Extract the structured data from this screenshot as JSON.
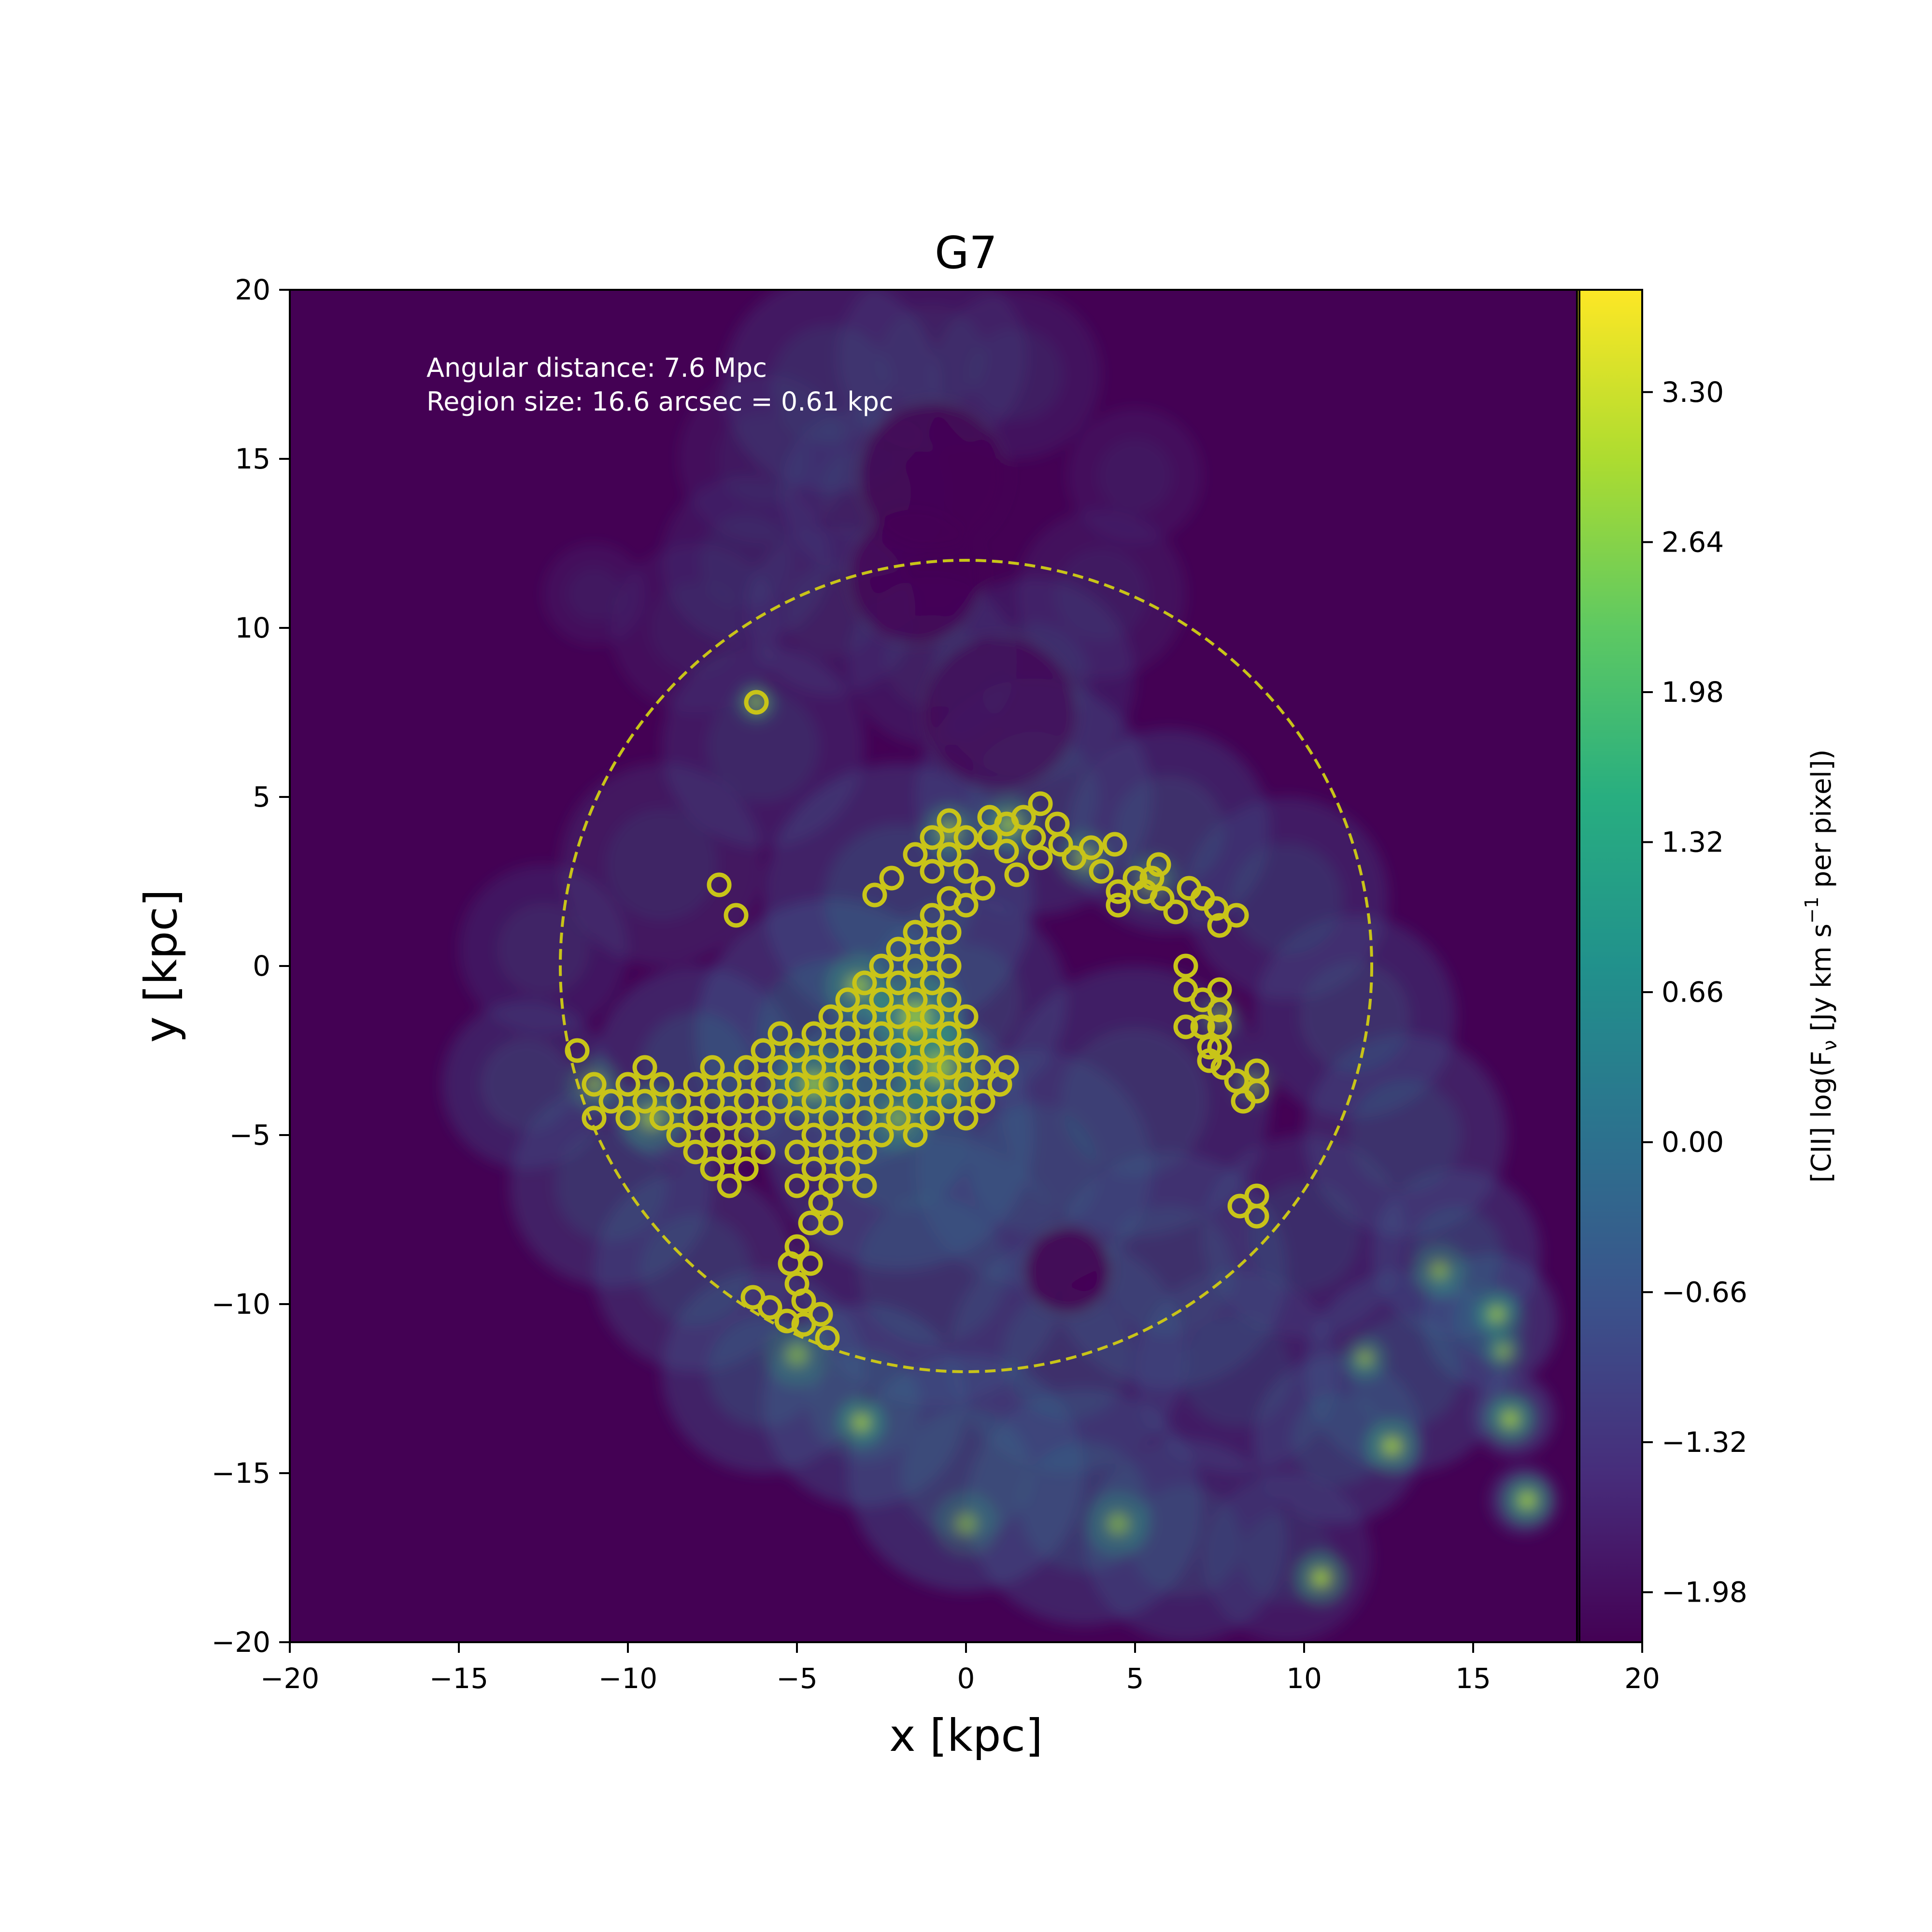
{
  "chart_data": {
    "type": "heatmap",
    "title": "G7",
    "xlabel": "x [kpc]",
    "ylabel": "y [kpc]",
    "xlim": [
      -20,
      20
    ],
    "ylim": [
      -20,
      20
    ],
    "xticks": [
      -20,
      -15,
      -10,
      -5,
      0,
      5,
      10,
      15,
      20
    ],
    "yticks": [
      -20,
      -15,
      -10,
      -5,
      0,
      5,
      10,
      15,
      20
    ],
    "xtick_labels": [
      "−20",
      "−15",
      "−10",
      "−5",
      "0",
      "5",
      "10",
      "15",
      "20"
    ],
    "ytick_labels": [
      "−20",
      "−15",
      "−10",
      "−5",
      "0",
      "5",
      "10",
      "15",
      "20"
    ],
    "annotations": [
      "Angular distance: 7.6 Mpc",
      "Region size: 16.6 arcsec = 0.61 kpc"
    ],
    "grid": false,
    "colormap": "viridis",
    "colorbar": {
      "label": "[CII] log(Fν [Jy km s⁻¹ per pixel])",
      "range": [
        -2.2,
        3.75
      ],
      "ticks": [
        -1.98,
        -1.32,
        -0.66,
        0.0,
        0.66,
        1.32,
        1.98,
        2.64,
        3.3
      ],
      "tick_labels": [
        "−1.98",
        "−1.32",
        "−0.66",
        "0.00",
        "0.66",
        "1.32",
        "1.98",
        "2.64",
        "3.30"
      ]
    },
    "dashed_circle": {
      "center": [
        0,
        0
      ],
      "radius": 12,
      "color": "#c8c418"
    },
    "regions": {
      "name": "",
      "radius": 0.3,
      "color": "#c8c418",
      "points": [
        [
          -6.2,
          7.8
        ],
        [
          -7.3,
          2.4
        ],
        [
          -6.8,
          1.5
        ],
        [
          -11.5,
          -2.5
        ],
        [
          -11.0,
          -3.5
        ],
        [
          -11.0,
          -4.5
        ],
        [
          -10.5,
          -4.0
        ],
        [
          -10.0,
          -3.5
        ],
        [
          -10.0,
          -4.5
        ],
        [
          -9.5,
          -4.0
        ],
        [
          -9.5,
          -3.0
        ],
        [
          -9.0,
          -3.5
        ],
        [
          -9.0,
          -4.5
        ],
        [
          -8.5,
          -4.0
        ],
        [
          -8.5,
          -5.0
        ],
        [
          -8.0,
          -3.5
        ],
        [
          -8.0,
          -4.5
        ],
        [
          -8.0,
          -5.5
        ],
        [
          -7.5,
          -3.0
        ],
        [
          -7.5,
          -4.0
        ],
        [
          -7.5,
          -5.0
        ],
        [
          -7.5,
          -6.0
        ],
        [
          -7.0,
          -3.5
        ],
        [
          -7.0,
          -4.5
        ],
        [
          -7.0,
          -5.5
        ],
        [
          -7.0,
          -6.5
        ],
        [
          -6.5,
          -3.0
        ],
        [
          -6.5,
          -4.0
        ],
        [
          -6.5,
          -5.0
        ],
        [
          -6.5,
          -6.0
        ],
        [
          -6.0,
          -2.5
        ],
        [
          -6.0,
          -3.5
        ],
        [
          -6.0,
          -4.5
        ],
        [
          -6.0,
          -5.5
        ],
        [
          -5.5,
          -2.0
        ],
        [
          -5.5,
          -3.0
        ],
        [
          -5.5,
          -4.0
        ],
        [
          -5.0,
          -2.5
        ],
        [
          -5.0,
          -3.5
        ],
        [
          -5.0,
          -4.5
        ],
        [
          -5.0,
          -5.5
        ],
        [
          -5.0,
          -6.5
        ],
        [
          -4.5,
          -2.0
        ],
        [
          -4.5,
          -3.0
        ],
        [
          -4.5,
          -4.0
        ],
        [
          -4.5,
          -5.0
        ],
        [
          -4.5,
          -6.0
        ],
        [
          -4.0,
          -1.5
        ],
        [
          -4.0,
          -2.5
        ],
        [
          -4.0,
          -3.5
        ],
        [
          -4.0,
          -4.5
        ],
        [
          -4.0,
          -5.5
        ],
        [
          -4.0,
          -6.5
        ],
        [
          -3.5,
          -1.0
        ],
        [
          -3.5,
          -2.0
        ],
        [
          -3.5,
          -3.0
        ],
        [
          -3.5,
          -4.0
        ],
        [
          -3.5,
          -5.0
        ],
        [
          -3.5,
          -6.0
        ],
        [
          -3.0,
          -0.5
        ],
        [
          -3.0,
          -1.5
        ],
        [
          -3.0,
          -2.5
        ],
        [
          -3.0,
          -3.5
        ],
        [
          -3.0,
          -4.5
        ],
        [
          -3.0,
          -5.5
        ],
        [
          -3.0,
          -6.5
        ],
        [
          -2.5,
          0.0
        ],
        [
          -2.5,
          -1.0
        ],
        [
          -2.5,
          -2.0
        ],
        [
          -2.5,
          -3.0
        ],
        [
          -2.5,
          -4.0
        ],
        [
          -2.5,
          -5.0
        ],
        [
          -2.0,
          0.5
        ],
        [
          -2.0,
          -0.5
        ],
        [
          -2.0,
          -1.5
        ],
        [
          -2.0,
          -2.5
        ],
        [
          -2.0,
          -3.5
        ],
        [
          -2.0,
          -4.5
        ],
        [
          -1.5,
          1.0
        ],
        [
          -1.5,
          0.0
        ],
        [
          -1.5,
          -1.0
        ],
        [
          -1.5,
          -2.0
        ],
        [
          -1.5,
          -3.0
        ],
        [
          -1.5,
          -4.0
        ],
        [
          -1.5,
          -5.0
        ],
        [
          -1.0,
          1.5
        ],
        [
          -1.0,
          0.5
        ],
        [
          -1.0,
          -0.5
        ],
        [
          -1.0,
          -1.5
        ],
        [
          -1.0,
          -2.5
        ],
        [
          -1.0,
          -3.5
        ],
        [
          -1.0,
          -4.5
        ],
        [
          -0.5,
          2.0
        ],
        [
          -0.5,
          1.0
        ],
        [
          -0.5,
          0.0
        ],
        [
          -0.5,
          -1.0
        ],
        [
          -0.5,
          -2.0
        ],
        [
          -0.5,
          -3.0
        ],
        [
          -0.5,
          -4.0
        ],
        [
          0.0,
          -1.5
        ],
        [
          0.0,
          -2.5
        ],
        [
          0.0,
          -3.5
        ],
        [
          0.0,
          -4.5
        ],
        [
          0.5,
          -3.0
        ],
        [
          0.5,
          -4.0
        ],
        [
          1.0,
          -3.5
        ],
        [
          1.2,
          -3.0
        ],
        [
          -2.7,
          2.1
        ],
        [
          -2.2,
          2.6
        ],
        [
          -1.5,
          3.3
        ],
        [
          -1.0,
          3.8
        ],
        [
          -1.0,
          2.8
        ],
        [
          -0.5,
          4.3
        ],
        [
          -0.5,
          3.3
        ],
        [
          0.0,
          3.8
        ],
        [
          0.0,
          2.8
        ],
        [
          0.0,
          1.8
        ],
        [
          0.5,
          2.3
        ],
        [
          0.7,
          4.4
        ],
        [
          0.7,
          3.8
        ],
        [
          1.2,
          4.2
        ],
        [
          1.2,
          3.4
        ],
        [
          1.5,
          2.7
        ],
        [
          1.7,
          4.4
        ],
        [
          2.0,
          3.8
        ],
        [
          2.2,
          4.8
        ],
        [
          2.2,
          3.2
        ],
        [
          2.7,
          4.2
        ],
        [
          2.8,
          3.6
        ],
        [
          3.2,
          3.2
        ],
        [
          3.7,
          3.5
        ],
        [
          4.0,
          2.8
        ],
        [
          4.4,
          3.6
        ],
        [
          4.5,
          2.2
        ],
        [
          4.5,
          1.8
        ],
        [
          5.0,
          2.6
        ],
        [
          5.3,
          2.2
        ],
        [
          5.5,
          2.6
        ],
        [
          5.7,
          3.0
        ],
        [
          5.8,
          2.0
        ],
        [
          6.2,
          1.6
        ],
        [
          6.6,
          2.3
        ],
        [
          7.0,
          2.0
        ],
        [
          7.4,
          1.7
        ],
        [
          7.5,
          1.2
        ],
        [
          8.0,
          1.5
        ],
        [
          6.5,
          0.0
        ],
        [
          6.5,
          -0.7
        ],
        [
          7.0,
          -1.0
        ],
        [
          6.5,
          -1.8
        ],
        [
          7.0,
          -1.8
        ],
        [
          7.5,
          -0.7
        ],
        [
          7.5,
          -1.3
        ],
        [
          7.5,
          -1.8
        ],
        [
          7.2,
          -2.4
        ],
        [
          7.5,
          -2.4
        ],
        [
          7.2,
          -2.8
        ],
        [
          7.6,
          -3.0
        ],
        [
          8.0,
          -3.4
        ],
        [
          8.2,
          -4.0
        ],
        [
          8.6,
          -3.1
        ],
        [
          8.6,
          -3.7
        ],
        [
          8.1,
          -7.1
        ],
        [
          8.6,
          -6.8
        ],
        [
          8.6,
          -7.4
        ],
        [
          -6.3,
          -9.8
        ],
        [
          -5.8,
          -10.1
        ],
        [
          -5.3,
          -10.5
        ],
        [
          -5.0,
          -9.4
        ],
        [
          -4.8,
          -9.9
        ],
        [
          -4.8,
          -10.6
        ],
        [
          -5.2,
          -8.8
        ],
        [
          -5.0,
          -8.3
        ],
        [
          -4.6,
          -7.6
        ],
        [
          -4.6,
          -8.8
        ],
        [
          -4.3,
          -10.3
        ],
        [
          -4.1,
          -11.0
        ],
        [
          -4.3,
          -7.0
        ],
        [
          -4.0,
          -7.6
        ]
      ]
    },
    "emission": {
      "name": "",
      "blobs": [
        [
          -4.0,
          17.2,
          3.2,
          0.25
        ],
        [
          -1.0,
          18.0,
          2.8,
          0.2
        ],
        [
          1.5,
          17.5,
          2.5,
          0.18
        ],
        [
          -6.0,
          15.0,
          2.5,
          0.15
        ],
        [
          -3.0,
          14.0,
          2.5,
          0.2
        ],
        [
          -6.5,
          12.0,
          2.5,
          0.18
        ],
        [
          -11.0,
          11.0,
          1.5,
          0.15
        ],
        [
          -8.0,
          10.0,
          2.5,
          0.15
        ],
        [
          -4.0,
          10.5,
          2.5,
          0.2
        ],
        [
          -1.0,
          9.0,
          2.5,
          0.2
        ],
        [
          2.0,
          8.5,
          3.0,
          0.22
        ],
        [
          4.0,
          11.0,
          2.5,
          0.16
        ],
        [
          5.0,
          14.5,
          2.0,
          0.14
        ],
        [
          -6.0,
          6.5,
          3.0,
          0.25
        ],
        [
          -9.0,
          3.0,
          3.0,
          0.24
        ],
        [
          -12.5,
          0.5,
          2.5,
          0.22
        ],
        [
          -13.0,
          -3.5,
          2.5,
          0.3
        ],
        [
          -10.5,
          -6.5,
          3.0,
          0.32
        ],
        [
          -8.0,
          -9.0,
          3.0,
          0.32
        ],
        [
          -6.0,
          -12.0,
          3.0,
          0.35
        ],
        [
          -3.0,
          -13.0,
          3.0,
          0.38
        ],
        [
          0.0,
          -15.0,
          3.5,
          0.38
        ],
        [
          3.5,
          -16.0,
          3.5,
          0.35
        ],
        [
          6.5,
          -17.0,
          3.0,
          0.3
        ],
        [
          9.5,
          -17.5,
          2.5,
          0.25
        ],
        [
          11.0,
          -14.0,
          2.5,
          0.35
        ],
        [
          13.0,
          -12.0,
          3.0,
          0.35
        ],
        [
          14.5,
          -8.5,
          2.5,
          0.35
        ],
        [
          15.5,
          -10.5,
          2.0,
          0.4
        ],
        [
          16.2,
          -13.3,
          1.2,
          0.45
        ],
        [
          16.5,
          -15.8,
          1.0,
          0.45
        ],
        [
          13.0,
          -5.0,
          3.0,
          0.32
        ],
        [
          11.5,
          -1.5,
          3.0,
          0.3
        ],
        [
          9.5,
          2.0,
          3.0,
          0.28
        ],
        [
          6.0,
          4.0,
          3.0,
          0.3
        ],
        [
          2.0,
          5.0,
          3.5,
          0.3
        ],
        [
          -2.0,
          2.0,
          4.0,
          0.35
        ],
        [
          -4.0,
          -2.0,
          4.0,
          0.4
        ],
        [
          -2.0,
          -5.0,
          4.0,
          0.38
        ],
        [
          2.0,
          -6.0,
          3.5,
          0.3
        ],
        [
          5.0,
          -4.0,
          4.0,
          0.3
        ],
        [
          6.0,
          -9.0,
          3.5,
          0.3
        ],
        [
          -1.0,
          -9.0,
          4.0,
          0.3
        ],
        [
          3.0,
          -11.5,
          3.5,
          0.3
        ],
        [
          8.0,
          -12.0,
          3.0,
          0.28
        ],
        [
          10.0,
          -8.0,
          3.0,
          0.28
        ],
        [
          0.0,
          -1.0,
          3.0,
          0.3
        ],
        [
          -8.0,
          -3.0,
          3.0,
          0.35
        ]
      ],
      "hotspots": [
        [
          -3.1,
          -13.5,
          0.45,
          0.85
        ],
        [
          10.5,
          -18.1,
          0.5,
          0.9
        ],
        [
          12.6,
          -14.2,
          0.5,
          0.85
        ],
        [
          16.6,
          -15.8,
          0.45,
          0.9
        ],
        [
          16.1,
          -13.4,
          0.45,
          0.88
        ],
        [
          15.7,
          -10.3,
          0.4,
          0.85
        ],
        [
          15.9,
          -11.4,
          0.35,
          0.75
        ],
        [
          11.8,
          -11.6,
          0.4,
          0.7
        ],
        [
          -6.2,
          7.8,
          0.35,
          0.8
        ],
        [
          -9.3,
          -4.5,
          0.6,
          0.7
        ],
        [
          -3.2,
          -0.6,
          0.6,
          0.7
        ],
        [
          -1.5,
          -1.5,
          0.8,
          0.75
        ],
        [
          -0.8,
          -3.0,
          0.8,
          0.72
        ],
        [
          1.3,
          4.2,
          0.5,
          0.8
        ],
        [
          -0.5,
          4.0,
          0.5,
          0.7
        ],
        [
          3.5,
          3.2,
          0.5,
          0.65
        ],
        [
          5.5,
          2.5,
          0.5,
          0.6
        ],
        [
          -4.5,
          -3.5,
          0.7,
          0.7
        ],
        [
          -2.0,
          -4.5,
          0.6,
          0.6
        ],
        [
          4.5,
          -16.5,
          0.6,
          0.55
        ],
        [
          0.0,
          -16.5,
          0.6,
          0.5
        ],
        [
          -5.0,
          -11.5,
          0.6,
          0.55
        ],
        [
          -11.0,
          -3.5,
          0.5,
          0.6
        ],
        [
          14.0,
          -9.0,
          0.5,
          0.6
        ],
        [
          7.5,
          -1.5,
          0.4,
          0.55
        ],
        [
          8.5,
          -3.5,
          0.4,
          0.55
        ]
      ],
      "holes": [
        [
          3.0,
          -9.0,
          1.3,
          0.9
        ],
        [
          -1.0,
          14.5,
          2.2,
          0.8
        ],
        [
          -1.5,
          11.5,
          2.0,
          0.7
        ],
        [
          1.0,
          7.5,
          2.3,
          0.6
        ]
      ]
    }
  }
}
